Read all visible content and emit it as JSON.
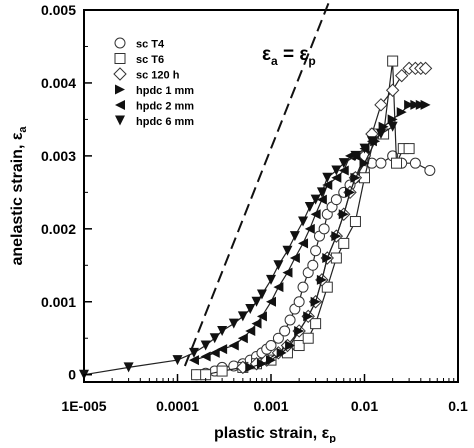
{
  "chart_data": {
    "type": "scatter",
    "xlabel_main": "plastic strain, ε",
    "xlabel_sub": "p",
    "ylabel_main": "anelastic strain, ε",
    "ylabel_sub": "a",
    "x_scale": "log",
    "xlim": [
      1e-05,
      0.1
    ],
    "ylim": [
      -0.0001,
      0.005
    ],
    "x_ticks": [
      {
        "value": 1e-05,
        "label": "1E-005"
      },
      {
        "value": 0.0001,
        "label": "0.0001"
      },
      {
        "value": 0.001,
        "label": "0.001"
      },
      {
        "value": 0.01,
        "label": "0.01"
      },
      {
        "value": 0.1,
        "label": "0.1"
      }
    ],
    "y_ticks": [
      {
        "value": 0,
        "label": "0"
      },
      {
        "value": 0.001,
        "label": "0.001"
      },
      {
        "value": 0.002,
        "label": "0.002"
      },
      {
        "value": 0.003,
        "label": "0.003"
      },
      {
        "value": 0.004,
        "label": "0.004"
      },
      {
        "value": 0.005,
        "label": "0.005"
      }
    ],
    "grid": false,
    "legend_position": "top-left",
    "annotation": {
      "main": "ε",
      "sub1": "a",
      "eq": " = ε",
      "sub2": "p"
    },
    "reference_line": {
      "x": [
        0.00012,
        0.0055
      ],
      "y": [
        0.00012,
        0.0055
      ],
      "style": "dashed"
    },
    "series": [
      {
        "name": "sc T4",
        "marker": "circle",
        "x": [
          0.00016,
          0.0002,
          0.00025,
          0.0003,
          0.0004,
          0.0005,
          0.0006,
          0.0007,
          0.0008,
          0.0009,
          0.001,
          0.0012,
          0.0014,
          0.0016,
          0.0018,
          0.002,
          0.0022,
          0.0025,
          0.0028,
          0.003,
          0.0033,
          0.0037,
          0.004,
          0.0045,
          0.005,
          0.006,
          0.007,
          0.008,
          0.01,
          0.012,
          0.015,
          0.02,
          0.025,
          0.035,
          0.05
        ],
        "y": [
          0.0,
          2e-05,
          5e-05,
          0.0001,
          0.00012,
          0.00015,
          0.0002,
          0.00025,
          0.0003,
          0.00035,
          0.0004,
          0.0005,
          0.0006,
          0.00075,
          0.0009,
          0.001,
          0.0012,
          0.0014,
          0.0015,
          0.0017,
          0.0019,
          0.002,
          0.0022,
          0.0023,
          0.0024,
          0.0025,
          0.0026,
          0.0027,
          0.0028,
          0.0029,
          0.0029,
          0.003,
          0.0029,
          0.0029,
          0.0028
        ]
      },
      {
        "name": "sc T6",
        "marker": "square",
        "x": [
          0.00016,
          0.0002,
          0.0003,
          0.0005,
          0.0007,
          0.001,
          0.0015,
          0.002,
          0.0025,
          0.003,
          0.004,
          0.005,
          0.006,
          0.008,
          0.01,
          0.013,
          0.016,
          0.02,
          0.022,
          0.026,
          0.03
        ],
        "y": [
          0.0,
          0.0,
          5e-05,
          0.0001,
          0.00015,
          0.0002,
          0.0003,
          0.0004,
          0.0005,
          0.0007,
          0.0012,
          0.0016,
          0.0018,
          0.0021,
          0.0027,
          0.0033,
          0.0033,
          0.0043,
          0.0029,
          0.0031,
          0.0031
        ]
      },
      {
        "name": "sc 120 h",
        "marker": "diamond",
        "x": [
          0.0005,
          0.0007,
          0.0009,
          0.0012,
          0.0015,
          0.002,
          0.0025,
          0.003,
          0.0035,
          0.004,
          0.005,
          0.006,
          0.007,
          0.008,
          0.01,
          0.012,
          0.015,
          0.02,
          0.025,
          0.03,
          0.035,
          0.04,
          0.045
        ],
        "y": [
          0.0001,
          0.00015,
          0.0002,
          0.0003,
          0.0004,
          0.0006,
          0.0008,
          0.001,
          0.0013,
          0.0016,
          0.0019,
          0.0022,
          0.0025,
          0.0027,
          0.003,
          0.0033,
          0.0037,
          0.0039,
          0.0041,
          0.0042,
          0.0042,
          0.0042,
          0.0042
        ]
      },
      {
        "name": "hpdc 1 mm",
        "marker": "triangle-right",
        "x": [
          0.0006,
          0.0008,
          0.001,
          0.0013,
          0.0016,
          0.002,
          0.0025,
          0.003,
          0.0035,
          0.004,
          0.005,
          0.006,
          0.007,
          0.008,
          0.01,
          0.013,
          0.016,
          0.02,
          0.025,
          0.03,
          0.035,
          0.04,
          0.045
        ],
        "y": [
          0.0001,
          0.00015,
          0.0002,
          0.0003,
          0.0004,
          0.0006,
          0.0008,
          0.001,
          0.0013,
          0.0016,
          0.0019,
          0.0022,
          0.0025,
          0.0027,
          0.0029,
          0.0032,
          0.0034,
          0.0035,
          0.0036,
          0.0037,
          0.0037,
          0.0037,
          0.0037
        ]
      },
      {
        "name": "hpdc 2 mm",
        "marker": "triangle-left",
        "x": [
          0.00015,
          0.0002,
          0.00025,
          0.0003,
          0.0004,
          0.0005,
          0.0006,
          0.0007,
          0.0008,
          0.001,
          0.0012,
          0.0015,
          0.0018,
          0.0022,
          0.0026,
          0.003,
          0.0035,
          0.004,
          0.005,
          0.006,
          0.007,
          0.008,
          0.01,
          0.012
        ],
        "y": [
          0.0002,
          0.00025,
          0.0003,
          0.00035,
          0.0004,
          0.0005,
          0.0006,
          0.0007,
          0.0008,
          0.001,
          0.0012,
          0.0014,
          0.0016,
          0.0018,
          0.002,
          0.0022,
          0.0024,
          0.0026,
          0.0027,
          0.0028,
          0.003,
          0.003,
          0.0031,
          0.0032
        ]
      },
      {
        "name": "hpdc 6 mm",
        "marker": "triangle-down",
        "x": [
          1e-05,
          3e-05,
          0.0001,
          0.00015,
          0.0002,
          0.00025,
          0.0003,
          0.0004,
          0.0005,
          0.0006,
          0.0007,
          0.0008,
          0.001,
          0.0012,
          0.0015,
          0.0018,
          0.0022,
          0.0026,
          0.003,
          0.0035,
          0.004,
          0.005,
          0.006,
          0.008,
          0.01,
          0.012,
          0.015,
          0.02
        ],
        "y": [
          0.0,
          0.0001,
          0.0002,
          0.0003,
          0.0004,
          0.0005,
          0.0006,
          0.0007,
          0.0008,
          0.0009,
          0.001,
          0.0011,
          0.0013,
          0.0015,
          0.0017,
          0.0019,
          0.0021,
          0.0023,
          0.0024,
          0.0025,
          0.0027,
          0.0028,
          0.0029,
          0.003,
          0.0031,
          0.0032,
          0.0033,
          0.0034
        ]
      }
    ]
  }
}
